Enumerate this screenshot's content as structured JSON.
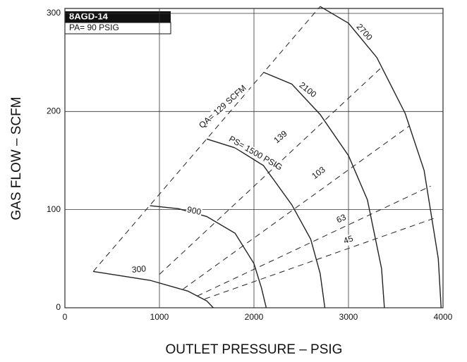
{
  "chart_data": {
    "type": "line",
    "title": "8AGD-14",
    "subtitle": "PA= 90 PSIG",
    "xlabel": "OUTLET PRESSURE – PSIG",
    "ylabel": "GAS FLOW – SCFM",
    "xlim": [
      0,
      4000
    ],
    "xticks": [
      0,
      1000,
      2000,
      3000,
      4000
    ],
    "ylim": [
      0,
      305
    ],
    "yticks": [
      0,
      100,
      200,
      300
    ],
    "grid": true,
    "series": [
      {
        "name": "300",
        "color": "#222",
        "dash": false,
        "x": [
          300,
          900,
          1300,
          1500,
          1570
        ],
        "values": [
          37,
          28,
          17,
          7,
          0
        ]
      },
      {
        "name": "900",
        "color": "#222",
        "dash": false,
        "x": [
          900,
          1200,
          1500,
          1800,
          2000,
          2080,
          2130
        ],
        "values": [
          104,
          101,
          93,
          76,
          45,
          20,
          0
        ]
      },
      {
        "name": "PS= 1500 PSIG",
        "color": "#222",
        "dash": false,
        "x": [
          1500,
          1800,
          2100,
          2400,
          2600,
          2700,
          2750
        ],
        "values": [
          172,
          163,
          145,
          105,
          70,
          35,
          0
        ]
      },
      {
        "name": "2100",
        "color": "#222",
        "dash": false,
        "x": [
          2100,
          2400,
          2700,
          3000,
          3200,
          3350,
          3380
        ],
        "values": [
          240,
          228,
          197,
          155,
          110,
          40,
          0
        ]
      },
      {
        "name": "2700",
        "color": "#222",
        "dash": false,
        "x": [
          2700,
          3000,
          3300,
          3600,
          3800,
          3950,
          3980
        ],
        "values": [
          307,
          290,
          255,
          198,
          140,
          50,
          0
        ]
      },
      {
        "name": "QA= 129 SCFM",
        "color": "#222",
        "dash": true,
        "x": [
          300,
          2700
        ],
        "values": [
          37,
          307
        ]
      },
      {
        "name": "139",
        "color": "#222",
        "dash": true,
        "x": [
          1000,
          3350
        ],
        "values": [
          34,
          245
        ]
      },
      {
        "name": "103",
        "color": "#222",
        "dash": true,
        "x": [
          1250,
          3640
        ],
        "values": [
          19,
          185
        ]
      },
      {
        "name": "63",
        "color": "#222",
        "dash": true,
        "x": [
          1400,
          3870
        ],
        "values": [
          12,
          124
        ]
      },
      {
        "name": "45",
        "color": "#222",
        "dash": true,
        "x": [
          1480,
          3900
        ],
        "values": [
          9,
          91
        ]
      }
    ]
  }
}
